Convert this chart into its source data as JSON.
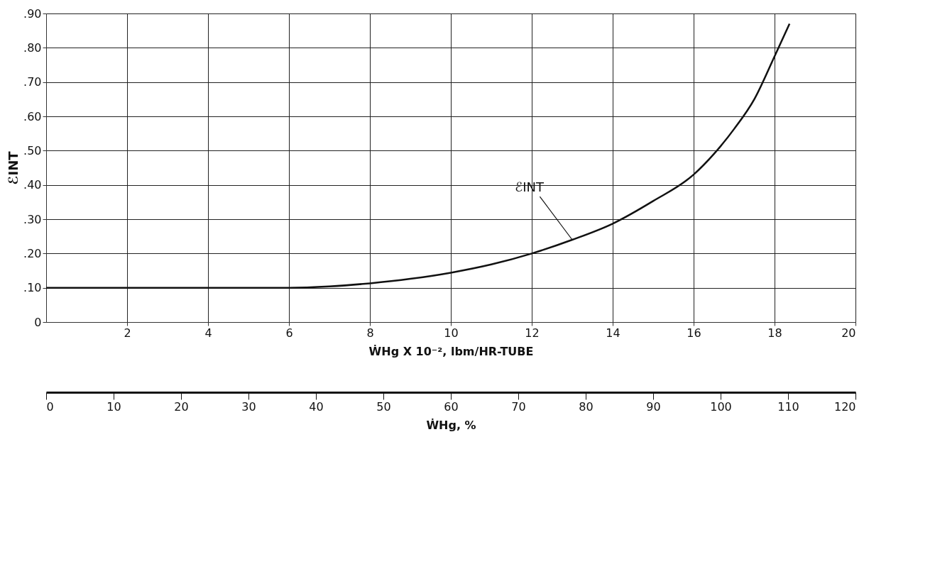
{
  "chart_data": {
    "type": "line",
    "xlabel": "ẆHg X 10⁻², lbm/HR-TUBE",
    "ylabel": "ℰINT",
    "x2label": "ẆHg, %",
    "series": [
      {
        "color": "#111111",
        "x": [
          0,
          2,
          4,
          6,
          7,
          8,
          9,
          10,
          11,
          12,
          13,
          14,
          15,
          16,
          16.5,
          17,
          17.5,
          18,
          18.37
        ],
        "values": [
          0.1,
          0.1,
          0.1,
          0.1,
          0.104,
          0.113,
          0.126,
          0.144,
          0.168,
          0.2,
          0.24,
          0.287,
          0.353,
          0.43,
          0.49,
          0.563,
          0.65,
          0.775,
          0.87
        ]
      }
    ],
    "xlim": [
      0,
      20
    ],
    "xticks": [
      2,
      4,
      6,
      8,
      10,
      12,
      14,
      16,
      18,
      20
    ],
    "ylim": [
      0,
      0.9
    ],
    "yticks": [
      {
        "value": 0,
        "label": "0"
      },
      {
        "value": 0.1,
        "label": ".10"
      },
      {
        "value": 0.2,
        "label": ".20"
      },
      {
        "value": 0.3,
        "label": ".30"
      },
      {
        "value": 0.4,
        "label": ".40"
      },
      {
        "value": 0.5,
        "label": ".50"
      },
      {
        "value": 0.6,
        "label": ".60"
      },
      {
        "value": 0.7,
        "label": ".70"
      },
      {
        "value": 0.8,
        "label": ".80"
      },
      {
        "value": 0.9,
        "label": ".90"
      }
    ],
    "x2lim": [
      0,
      120
    ],
    "x2ticks": [
      0,
      10,
      20,
      30,
      40,
      50,
      60,
      70,
      80,
      90,
      100,
      110,
      120
    ],
    "annotations": [
      {
        "text": "ℰINT",
        "x": 13,
        "y": 0.24
      }
    ],
    "grid": true,
    "marker": "none",
    "line_style": "solid"
  }
}
